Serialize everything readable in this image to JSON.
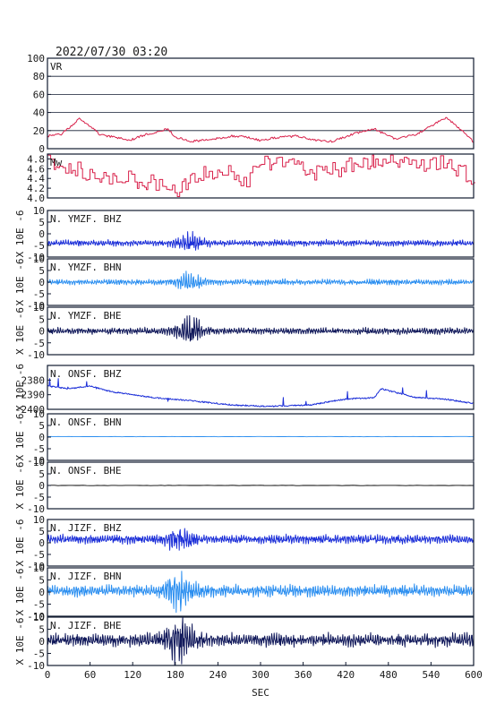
{
  "header": {
    "timestamp": "2022/07/30 03:20"
  },
  "colors": {
    "frame": "#101a30",
    "grid": "#101a30",
    "red": "#d8204a",
    "blue": "#1c2fd8",
    "light_blue": "#2a8ef0",
    "navy": "#10185a",
    "black": "#000000"
  },
  "chart_data": {
    "type": "line",
    "xlabel": "SEC",
    "xlim": [
      0,
      600
    ],
    "xticks": [
      0,
      60,
      120,
      180,
      240,
      300,
      360,
      420,
      480,
      540,
      600
    ],
    "xtick_labels": [
      "0",
      "60",
      "120",
      "180",
      "240",
      "300",
      "360",
      "420",
      "480",
      "540",
      "600"
    ],
    "panels": [
      {
        "label": "VR",
        "ylim": [
          0,
          100
        ],
        "yticks": [
          0,
          20,
          40,
          60,
          80,
          100
        ],
        "ytick_labels": [
          "0",
          "20",
          "40",
          "60",
          "80",
          "100"
        ],
        "ylabel": "",
        "grid": true,
        "color": "red",
        "kind": "vr"
      },
      {
        "label": "Mw",
        "ylim": [
          4.0,
          4.9
        ],
        "yticks": [
          4.0,
          4.2,
          4.4,
          4.6,
          4.8
        ],
        "ytick_labels": [
          "4.0",
          "4.2",
          "4.4",
          "4.6",
          "4.8"
        ],
        "ylabel": "",
        "grid": false,
        "color": "red",
        "kind": "mw"
      },
      {
        "label": "N. YMZF. BHZ",
        "ylim": [
          -10,
          10
        ],
        "yticks": [
          -10,
          -5,
          0,
          5,
          10
        ],
        "ytick_labels": [
          "-10",
          "-5",
          "0",
          "5",
          "10"
        ],
        "ylabel": "X 10E -6",
        "color": "blue",
        "kind": "wave",
        "offset": -4,
        "amp": 1.1,
        "burst": 2.4,
        "burst_center": 200,
        "seed": 3
      },
      {
        "label": "N. YMZF. BHN",
        "ylim": [
          -10,
          10
        ],
        "yticks": [
          -10,
          -5,
          0,
          5,
          10
        ],
        "ytick_labels": [
          "-10",
          "-5",
          "0",
          "5",
          "10"
        ],
        "ylabel": "X 10E -6",
        "color": "light_blue",
        "kind": "wave",
        "offset": 0,
        "amp": 1.0,
        "burst": 3.0,
        "burst_center": 200,
        "seed": 7
      },
      {
        "label": "N. YMZF. BHE",
        "ylim": [
          -10,
          10
        ],
        "yticks": [
          -10,
          -5,
          0,
          5,
          10
        ],
        "ytick_labels": [
          "-10",
          "-5",
          "0",
          "5",
          "10"
        ],
        "ylabel": "X 10E -6",
        "color": "navy",
        "kind": "wave",
        "offset": 0,
        "amp": 1.2,
        "burst": 3.4,
        "burst_center": 200,
        "seed": 11
      },
      {
        "label": "N. ONSF. BHZ",
        "ylim": [
          -2400,
          -2370
        ],
        "yticks": [
          -2400,
          -2390,
          -2380
        ],
        "ytick_labels": [
          "-2400",
          "-2390",
          "-2380"
        ],
        "ylabel": "X 10E -6",
        "color": "blue",
        "kind": "drift",
        "seed": 13
      },
      {
        "label": "N. ONSF. BHN",
        "ylim": [
          -10,
          10
        ],
        "yticks": [
          -10,
          -5,
          0,
          5,
          10
        ],
        "ytick_labels": [
          "-10",
          "-5",
          "0",
          "5",
          "10"
        ],
        "ylabel": "X 10E -6",
        "color": "light_blue",
        "kind": "flat",
        "offset": 0.2
      },
      {
        "label": "N. ONSF. BHE",
        "ylim": [
          -10,
          10
        ],
        "yticks": [
          -10,
          -5,
          0,
          5,
          10
        ],
        "ytick_labels": [
          "-10",
          "-5",
          "0",
          "5",
          "10"
        ],
        "ylabel": "X 10E -6",
        "color": "black",
        "kind": "flat",
        "offset": 0
      },
      {
        "label": "N. JIZF. BHZ",
        "ylim": [
          -10,
          10
        ],
        "yticks": [
          -10,
          -5,
          0,
          5,
          10
        ],
        "ytick_labels": [
          "-10",
          "-5",
          "0",
          "5",
          "10"
        ],
        "ylabel": "X 10E -6",
        "color": "blue",
        "kind": "wave",
        "offset": 1.5,
        "amp": 1.6,
        "burst": 2.2,
        "burst_center": 185,
        "seed": 17
      },
      {
        "label": "N. JIZF. BHN",
        "ylim": [
          -10,
          10
        ],
        "yticks": [
          -10,
          -5,
          0,
          5,
          10
        ],
        "ytick_labels": [
          "-10",
          "-5",
          "0",
          "5",
          "10"
        ],
        "ylabel": "X 10E -6",
        "color": "light_blue",
        "kind": "wave",
        "offset": 0.5,
        "amp": 2.0,
        "burst": 3.0,
        "burst_center": 185,
        "seed": 19
      },
      {
        "label": "N. JIZF. BHE",
        "ylim": [
          -10,
          10
        ],
        "yticks": [
          -10,
          -5,
          0,
          5,
          10
        ],
        "ytick_labels": [
          "-10",
          "-5",
          "0",
          "5",
          "10"
        ],
        "ylabel": "X 10E -6",
        "color": "navy",
        "kind": "wave",
        "offset": 0.5,
        "amp": 2.3,
        "burst": 3.0,
        "burst_center": 185,
        "seed": 23
      }
    ]
  }
}
